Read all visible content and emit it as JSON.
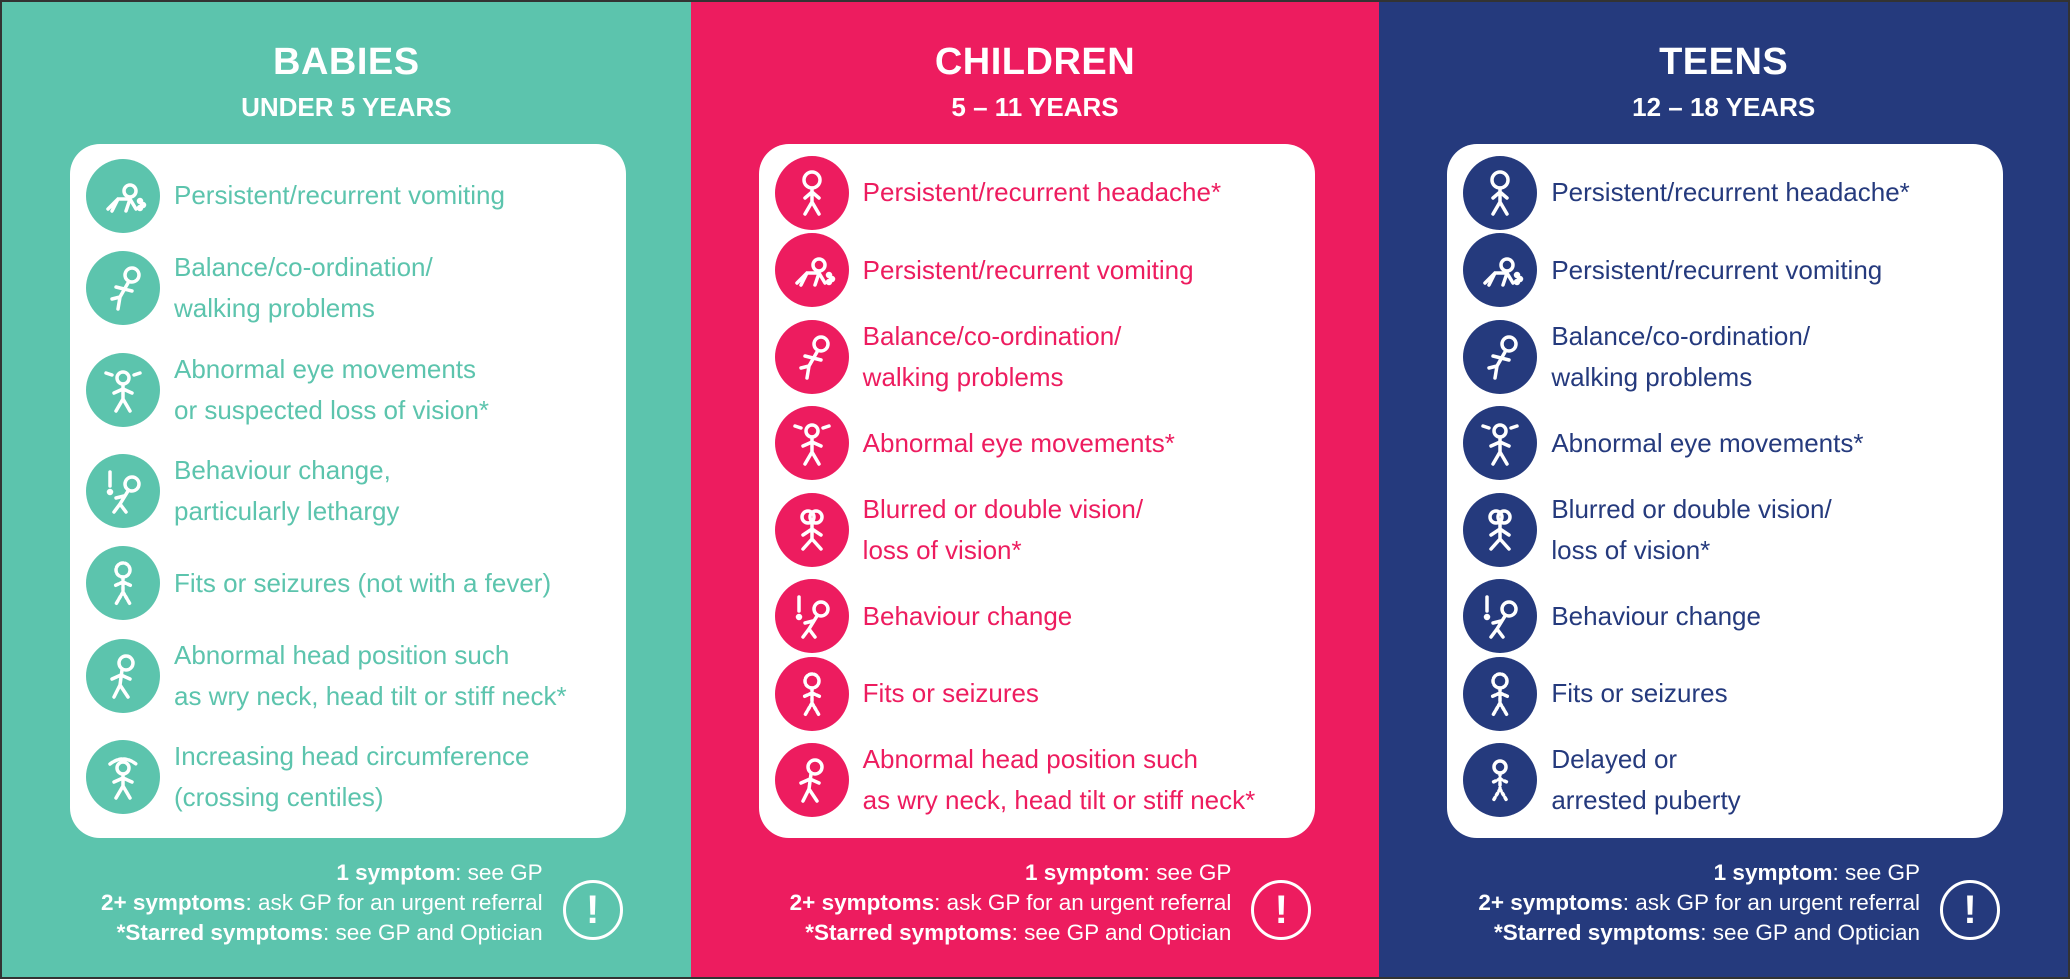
{
  "columns": [
    {
      "id": "babies",
      "bg": "#5cc4ad",
      "accent": "#5cc4ad",
      "title": "BABIES",
      "subtitle": "UNDER 5 YEARS",
      "items": [
        {
          "text": "Persistent/recurrent vomiting",
          "icon": "vomiting-icon",
          "lines": 1
        },
        {
          "text": "Balance/co-ordination/\nwalking problems",
          "icon": "walking-icon",
          "lines": 2
        },
        {
          "text": "Abnormal eye movements\nor suspected loss of vision*",
          "icon": "eye-movement-icon",
          "lines": 2
        },
        {
          "text": "Behaviour change,\nparticularly lethargy",
          "icon": "behaviour-icon",
          "lines": 2
        },
        {
          "text": "Fits or seizures (not with a fever)",
          "icon": "seizure-icon",
          "lines": 1
        },
        {
          "text": "Abnormal head position such\nas wry neck, head tilt or stiff neck*",
          "icon": "head-position-icon",
          "lines": 2
        },
        {
          "text": "Increasing head circumference\n(crossing centiles)",
          "icon": "head-circumference-icon",
          "lines": 2
        }
      ],
      "footer": {
        "one_b": "1 symptom",
        "one_t": ": see GP",
        "two_b": "2+ symptoms",
        "two_t": ": ask GP for an urgent referral",
        "star_b": "*Starred symptoms",
        "star_t": ": see GP and Optician",
        "alert": "!"
      }
    },
    {
      "id": "children",
      "bg": "#ed1c5f",
      "accent": "#ed1c5f",
      "title": "CHILDREN",
      "subtitle": "5 – 11 YEARS",
      "items": [
        {
          "text": "Persistent/recurrent headache*",
          "icon": "headache-icon",
          "lines": 1
        },
        {
          "text": "Persistent/recurrent vomiting",
          "icon": "vomiting-icon",
          "lines": 1
        },
        {
          "text": "Balance/co-ordination/\nwalking problems",
          "icon": "walking-icon",
          "lines": 2
        },
        {
          "text": "Abnormal eye movements*",
          "icon": "eye-movement-icon",
          "lines": 1
        },
        {
          "text": "Blurred or double vision/\nloss of vision*",
          "icon": "double-vision-icon",
          "lines": 2
        },
        {
          "text": "Behaviour change",
          "icon": "behaviour-icon",
          "lines": 1
        },
        {
          "text": "Fits or seizures",
          "icon": "seizure-icon",
          "lines": 1
        },
        {
          "text": "Abnormal head position such\nas wry neck, head tilt or stiff neck*",
          "icon": "head-position-icon",
          "lines": 2
        }
      ],
      "footer": {
        "one_b": "1 symptom",
        "one_t": ": see GP",
        "two_b": "2+ symptoms",
        "two_t": ": ask GP for an urgent referral",
        "star_b": "*Starred symptoms",
        "star_t": ": see GP and Optician",
        "alert": "!"
      }
    },
    {
      "id": "teens",
      "bg": "#253a7d",
      "accent": "#253a7d",
      "title": "TEENS",
      "subtitle": "12 – 18 YEARS",
      "items": [
        {
          "text": "Persistent/recurrent headache*",
          "icon": "headache-icon",
          "lines": 1
        },
        {
          "text": "Persistent/recurrent vomiting",
          "icon": "vomiting-icon",
          "lines": 1
        },
        {
          "text": "Balance/co-ordination/\nwalking problems",
          "icon": "walking-icon",
          "lines": 2
        },
        {
          "text": "Abnormal eye movements*",
          "icon": "eye-movement-icon",
          "lines": 1
        },
        {
          "text": "Blurred or double vision/\nloss of vision*",
          "icon": "double-vision-icon",
          "lines": 2
        },
        {
          "text": "Behaviour change",
          "icon": "behaviour-icon",
          "lines": 1
        },
        {
          "text": "Fits or seizures",
          "icon": "seizure-icon",
          "lines": 1
        },
        {
          "text": "Delayed or\narrested puberty",
          "icon": "puberty-icon",
          "lines": 2
        }
      ],
      "footer": {
        "one_b": "1 symptom",
        "one_t": ": see GP",
        "two_b": "2+ symptoms",
        "two_t": ": ask GP for an urgent referral",
        "star_b": "*Starred symptoms",
        "star_t": ": see GP and Optician",
        "alert": "!"
      }
    }
  ]
}
